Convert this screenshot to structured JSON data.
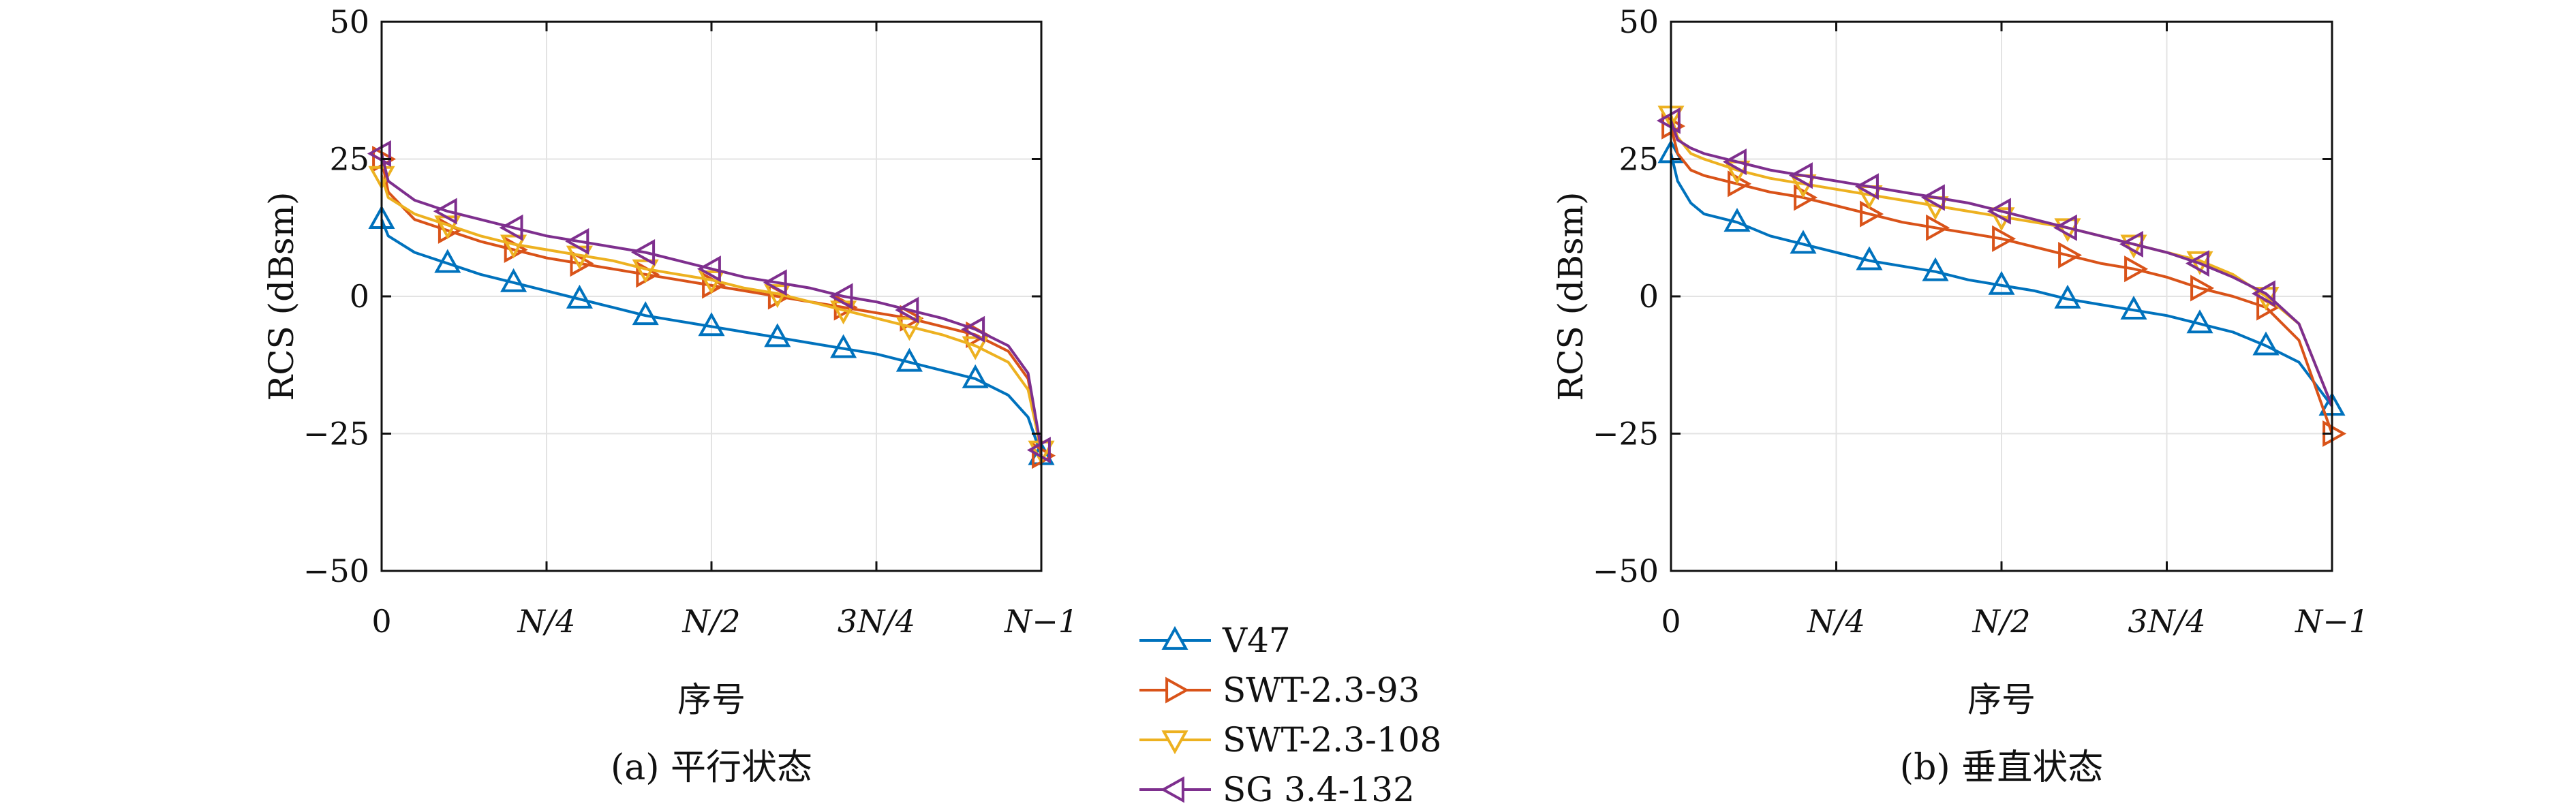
{
  "chart_data": [
    {
      "type": "line",
      "caption": "(a) 平行状态",
      "xlabel": "序号",
      "ylabel": "RCS (dBsm)",
      "xlim": [
        0,
        1
      ],
      "ylim": [
        -50,
        50
      ],
      "xticks": [
        {
          "x": 0,
          "label": "0"
        },
        {
          "x": 0.25,
          "label": "N/4"
        },
        {
          "x": 0.5,
          "label": "N/2"
        },
        {
          "x": 0.75,
          "label": "3N/4"
        },
        {
          "x": 1,
          "label": "N−1"
        }
      ],
      "yticks": [
        {
          "y": 50,
          "label": "50"
        },
        {
          "y": 25,
          "label": "25"
        },
        {
          "y": 0,
          "label": "0"
        },
        {
          "y": -25,
          "label": "−25"
        },
        {
          "y": -50,
          "label": "−50"
        }
      ],
      "grid": true,
      "series": [
        {
          "name": "V47",
          "color": "#0072BD",
          "marker": "triangle-up",
          "x": [
            0,
            0.01,
            0.05,
            0.1,
            0.15,
            0.2,
            0.25,
            0.3,
            0.35,
            0.4,
            0.45,
            0.5,
            0.55,
            0.6,
            0.65,
            0.7,
            0.75,
            0.8,
            0.85,
            0.9,
            0.95,
            0.98,
            1
          ],
          "y": [
            14,
            11,
            8,
            6,
            4,
            2.5,
            1,
            -0.5,
            -2,
            -3.5,
            -4.5,
            -5.5,
            -6.5,
            -7.5,
            -8.5,
            -9.5,
            -10.5,
            -12,
            -13.5,
            -15,
            -18,
            -22,
            -29
          ],
          "marker_x": [
            0,
            0.1,
            0.2,
            0.3,
            0.4,
            0.5,
            0.6,
            0.7,
            0.8,
            0.9,
            1
          ]
        },
        {
          "name": "SWT-2.3-93",
          "color": "#D95319",
          "marker": "triangle-right",
          "x": [
            0,
            0.01,
            0.05,
            0.1,
            0.15,
            0.2,
            0.25,
            0.3,
            0.35,
            0.4,
            0.45,
            0.5,
            0.55,
            0.6,
            0.65,
            0.7,
            0.75,
            0.8,
            0.85,
            0.9,
            0.95,
            0.98,
            1
          ],
          "y": [
            25,
            19,
            14,
            12,
            10,
            8.5,
            7,
            6,
            5,
            4,
            3,
            2,
            1,
            0,
            -1,
            -2,
            -3,
            -4,
            -5.5,
            -7,
            -10,
            -15,
            -29
          ],
          "marker_x": [
            0,
            0.1,
            0.2,
            0.3,
            0.4,
            0.5,
            0.6,
            0.7,
            0.8,
            0.9,
            1
          ]
        },
        {
          "name": "SWT-2.3-108",
          "color": "#EDB120",
          "marker": "triangle-down",
          "x": [
            0,
            0.01,
            0.05,
            0.1,
            0.15,
            0.2,
            0.25,
            0.3,
            0.35,
            0.4,
            0.45,
            0.5,
            0.55,
            0.6,
            0.65,
            0.7,
            0.75,
            0.8,
            0.85,
            0.9,
            0.95,
            0.98,
            1
          ],
          "y": [
            22,
            18,
            15,
            13,
            11,
            9.5,
            8.5,
            7.5,
            6.5,
            5,
            4,
            3,
            1.5,
            0.5,
            -1,
            -2.5,
            -4,
            -5.5,
            -7,
            -9,
            -12,
            -17,
            -28
          ],
          "marker_x": [
            0,
            0.1,
            0.2,
            0.3,
            0.4,
            0.5,
            0.6,
            0.7,
            0.8,
            0.9,
            1
          ]
        },
        {
          "name": "SG 3.4-132",
          "color": "#7E2F8E",
          "marker": "triangle-left",
          "x": [
            0,
            0.01,
            0.05,
            0.1,
            0.15,
            0.2,
            0.25,
            0.3,
            0.35,
            0.4,
            0.45,
            0.5,
            0.55,
            0.6,
            0.65,
            0.7,
            0.75,
            0.8,
            0.85,
            0.9,
            0.95,
            0.98,
            1
          ],
          "y": [
            26,
            21,
            17.5,
            15.5,
            14,
            12.5,
            11,
            10,
            9,
            8,
            6.5,
            5,
            3.5,
            2.5,
            1.5,
            0,
            -1,
            -2.5,
            -4,
            -6,
            -9,
            -14,
            -28
          ],
          "marker_x": [
            0,
            0.1,
            0.2,
            0.3,
            0.4,
            0.5,
            0.6,
            0.7,
            0.8,
            0.9,
            1
          ]
        }
      ]
    },
    {
      "type": "line",
      "caption": "(b) 垂直状态",
      "xlabel": "序号",
      "ylabel": "RCS (dBsm)",
      "xlim": [
        0,
        1
      ],
      "ylim": [
        -50,
        50
      ],
      "xticks": [
        {
          "x": 0,
          "label": "0"
        },
        {
          "x": 0.25,
          "label": "N/4"
        },
        {
          "x": 0.5,
          "label": "N/2"
        },
        {
          "x": 0.75,
          "label": "3N/4"
        },
        {
          "x": 1,
          "label": "N−1"
        }
      ],
      "yticks": [
        {
          "y": 50,
          "label": "50"
        },
        {
          "y": 25,
          "label": "25"
        },
        {
          "y": 0,
          "label": "0"
        },
        {
          "y": -25,
          "label": "−25"
        },
        {
          "y": -50,
          "label": "−50"
        }
      ],
      "grid": true,
      "series": [
        {
          "name": "V47",
          "color": "#0072BD",
          "marker": "triangle-up",
          "x": [
            0,
            0.01,
            0.03,
            0.05,
            0.1,
            0.15,
            0.2,
            0.25,
            0.3,
            0.35,
            0.4,
            0.45,
            0.5,
            0.55,
            0.6,
            0.65,
            0.7,
            0.75,
            0.8,
            0.85,
            0.9,
            0.95,
            1
          ],
          "y": [
            26,
            21,
            17,
            15,
            13.5,
            11,
            9.5,
            8,
            6.5,
            5.5,
            4.5,
            3,
            2,
            1,
            -0.5,
            -1.5,
            -2.5,
            -3.5,
            -5,
            -6.5,
            -9,
            -12,
            -20
          ],
          "marker_x": [
            0,
            0.1,
            0.2,
            0.3,
            0.4,
            0.5,
            0.6,
            0.7,
            0.8,
            0.9,
            1
          ]
        },
        {
          "name": "SWT-2.3-93",
          "color": "#D95319",
          "marker": "triangle-right",
          "x": [
            0,
            0.01,
            0.03,
            0.05,
            0.1,
            0.15,
            0.2,
            0.25,
            0.3,
            0.35,
            0.4,
            0.45,
            0.5,
            0.55,
            0.6,
            0.65,
            0.7,
            0.75,
            0.8,
            0.85,
            0.9,
            0.95,
            1
          ],
          "y": [
            31,
            26,
            23,
            22,
            20.5,
            19,
            18,
            16.5,
            15,
            13.5,
            12.5,
            11.5,
            10.5,
            9,
            7.5,
            6,
            5,
            3.5,
            1.5,
            0,
            -2,
            -8,
            -25
          ],
          "marker_x": [
            0,
            0.1,
            0.2,
            0.3,
            0.4,
            0.5,
            0.6,
            0.7,
            0.8,
            0.9,
            1
          ]
        },
        {
          "name": "SWT-2.3-108",
          "color": "#EDB120",
          "marker": "triangle-down",
          "x": [
            0,
            0.01,
            0.03,
            0.05,
            0.1,
            0.15,
            0.2,
            0.25,
            0.3,
            0.35,
            0.4,
            0.45,
            0.5,
            0.55,
            0.6,
            0.65,
            0.7,
            0.75,
            0.8,
            0.85,
            0.9,
            0.95,
            1
          ],
          "y": [
            33,
            29,
            26,
            25,
            23,
            21.5,
            20.5,
            19.5,
            18.5,
            17.5,
            16.5,
            15.5,
            14.5,
            13.5,
            12.5,
            11,
            9.5,
            8,
            6.5,
            4,
            0,
            -5,
            -20
          ],
          "marker_x": [
            0,
            0.1,
            0.2,
            0.3,
            0.4,
            0.5,
            0.6,
            0.7,
            0.8,
            0.9
          ]
        },
        {
          "name": "SG 3.4-132",
          "color": "#7E2F8E",
          "marker": "triangle-left",
          "x": [
            0,
            0.01,
            0.03,
            0.05,
            0.1,
            0.15,
            0.2,
            0.25,
            0.3,
            0.35,
            0.4,
            0.45,
            0.5,
            0.55,
            0.6,
            0.65,
            0.7,
            0.75,
            0.8,
            0.85,
            0.9,
            0.95,
            1
          ],
          "y": [
            32,
            28.5,
            27,
            26,
            24.5,
            23,
            22,
            21,
            20,
            19,
            18,
            17,
            15.5,
            14,
            12.5,
            11,
            9.5,
            8,
            6,
            3.5,
            0.5,
            -5,
            -20
          ],
          "marker_x": [
            0,
            0.1,
            0.2,
            0.3,
            0.4,
            0.5,
            0.6,
            0.7,
            0.8,
            0.9
          ]
        }
      ]
    }
  ]
}
